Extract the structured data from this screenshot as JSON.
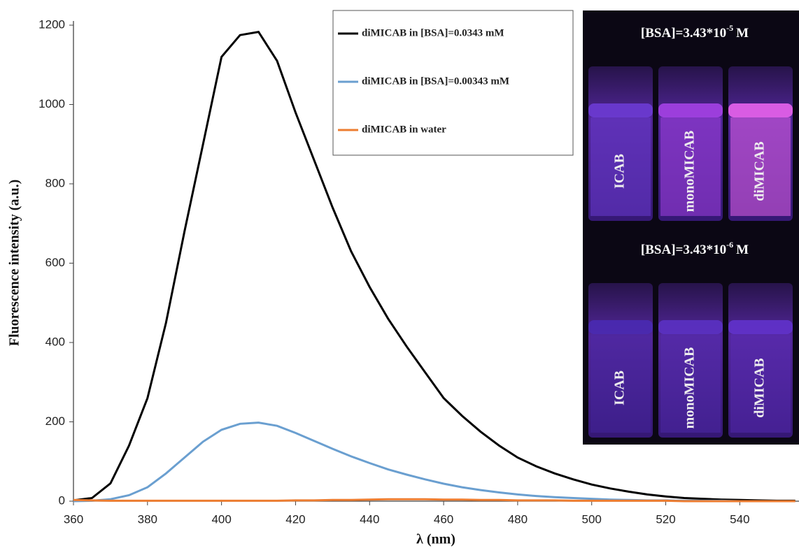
{
  "chart_data": {
    "type": "line",
    "xlabel": "λ (nm)",
    "ylabel": "Fluorescence intensity (a.u.)",
    "x": [
      360,
      365,
      370,
      375,
      380,
      385,
      390,
      395,
      400,
      405,
      410,
      415,
      420,
      425,
      430,
      435,
      440,
      445,
      450,
      455,
      460,
      465,
      470,
      475,
      480,
      485,
      490,
      495,
      500,
      505,
      510,
      515,
      520,
      525,
      530,
      535,
      540,
      545,
      550,
      555
    ],
    "series": [
      {
        "name": "diMICAB in [BSA]=0.0343 mM",
        "color": "#000000",
        "values": [
          2,
          8,
          45,
          140,
          260,
          450,
          680,
          900,
          1120,
          1175,
          1183,
          1110,
          980,
          860,
          740,
          630,
          540,
          460,
          390,
          325,
          260,
          215,
          175,
          140,
          110,
          88,
          70,
          55,
          42,
          32,
          24,
          17,
          12,
          8,
          6,
          4,
          3,
          2,
          1,
          1
        ]
      },
      {
        "name": "diMICAB in [BSA]=0.00343 mM",
        "color": "#6a9fd0",
        "values": [
          0,
          1,
          5,
          15,
          35,
          70,
          110,
          150,
          180,
          195,
          198,
          190,
          172,
          152,
          132,
          113,
          96,
          80,
          67,
          55,
          44,
          35,
          28,
          22,
          17,
          13,
          10,
          8,
          6,
          4,
          3,
          2,
          2,
          1,
          1,
          1,
          0,
          0,
          0,
          0
        ]
      },
      {
        "name": "diMICAB in water",
        "color": "#ed7d31",
        "values": [
          3,
          2,
          1,
          1,
          1,
          1,
          1,
          1,
          1,
          1,
          1,
          1,
          2,
          2,
          3,
          3,
          4,
          5,
          5,
          5,
          4,
          4,
          3,
          3,
          2,
          2,
          2,
          1,
          1,
          1,
          1,
          1,
          1,
          0,
          0,
          0,
          0,
          0,
          0,
          0
        ]
      }
    ],
    "xlim": [
      360,
      556
    ],
    "ylim": [
      0,
      1200
    ],
    "xticks": [
      360,
      380,
      400,
      420,
      440,
      460,
      480,
      500,
      520,
      540
    ],
    "yticks": [
      0,
      200,
      400,
      600,
      800,
      1000,
      1200
    ],
    "legend": "top-center"
  },
  "insets": [
    {
      "title": "[BSA]=3.43*10",
      "exponent": "-5",
      "unit": "M",
      "vials": [
        "ICAB",
        "monoMICAB",
        "diMICAB"
      ]
    },
    {
      "title": "[BSA]=3.43*10",
      "exponent": "-6",
      "unit": "M",
      "vials": [
        "ICAB",
        "monoMICAB",
        "diMICAB"
      ]
    }
  ]
}
